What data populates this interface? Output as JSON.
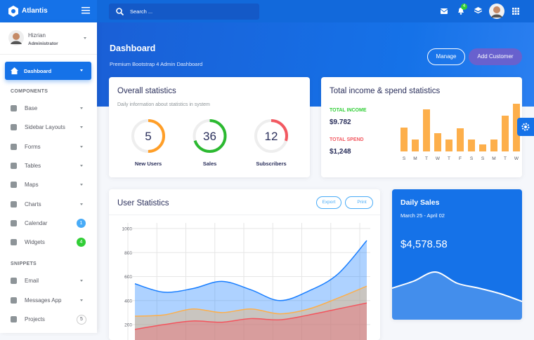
{
  "brand": "Atlantis",
  "search_placeholder": "Search ...",
  "notification_count": 4,
  "user": {
    "name": "Hizrian",
    "role": "Administrator"
  },
  "nav": {
    "active": "Dashboard",
    "sections": [
      {
        "title": "COMPONENTS",
        "items": [
          {
            "label": "Base"
          },
          {
            "label": "Sidebar Layouts"
          },
          {
            "label": "Forms"
          },
          {
            "label": "Tables"
          },
          {
            "label": "Maps"
          },
          {
            "label": "Charts"
          },
          {
            "label": "Calendar",
            "badge": 1,
            "badge_color": "#48abf7"
          },
          {
            "label": "Widgets",
            "badge": 4,
            "badge_color": "#31ce36"
          }
        ]
      },
      {
        "title": "SNIPPETS",
        "items": [
          {
            "label": "Email"
          },
          {
            "label": "Messages App"
          },
          {
            "label": "Projects",
            "badge": 5,
            "badge_color": "outline"
          }
        ]
      }
    ]
  },
  "header": {
    "title": "Dashboard",
    "subtitle": "Premium Bootstrap 4 Admin Dashboard",
    "buttons": [
      "Manage",
      "Add Customer"
    ]
  },
  "overall": {
    "title": "Overall statistics",
    "subtitle": "Daily information about statistics in system",
    "circles": [
      {
        "value": 5,
        "label": "New Users",
        "color": "#ff9e27",
        "progress": 50
      },
      {
        "value": 36,
        "label": "Sales",
        "color": "#2bb930",
        "progress": 70
      },
      {
        "value": 12,
        "label": "Subscribers",
        "color": "#f25961",
        "progress": 30
      }
    ]
  },
  "income": {
    "title": "Total income & spend statistics",
    "income_label": "TOTAL INCOME",
    "income_value": "$9.782",
    "spend_label": "TOTAL SPEND",
    "spend_value": "$1,248",
    "chart_data": {
      "type": "bar",
      "categories": [
        "S",
        "M",
        "T",
        "W",
        "T",
        "F",
        "S",
        "S",
        "M",
        "T",
        "W"
      ],
      "values": [
        34,
        17,
        60,
        26,
        17,
        33,
        17,
        10,
        17,
        51,
        68
      ],
      "color": "#fdaf4b",
      "ylim": [
        0,
        70
      ]
    }
  },
  "user_stats": {
    "title": "User Statistics",
    "buttons": [
      "Export",
      "Print"
    ],
    "chart_data": {
      "type": "area",
      "ylim": [
        0,
        1000
      ],
      "yticks": [
        200,
        400,
        600,
        800,
        1000
      ],
      "grid": true,
      "series": [
        {
          "color": "#177dff",
          "values": [
            540,
            470,
            500,
            560,
            490,
            400,
            480,
            620,
            900
          ]
        },
        {
          "color": "#fdaf4b",
          "values": [
            270,
            280,
            330,
            300,
            330,
            290,
            330,
            420,
            520
          ]
        },
        {
          "color": "#f3545d",
          "values": [
            160,
            200,
            230,
            220,
            250,
            240,
            280,
            330,
            380
          ]
        }
      ]
    }
  },
  "daily_sales": {
    "title": "Daily Sales",
    "date_range": "March 25 - April 02",
    "amount": "$4,578.58",
    "chart_data": {
      "type": "line",
      "values": [
        45,
        55,
        68,
        52,
        45,
        37,
        26
      ],
      "ylim": [
        0,
        100
      ],
      "color": "#ffffff"
    }
  }
}
